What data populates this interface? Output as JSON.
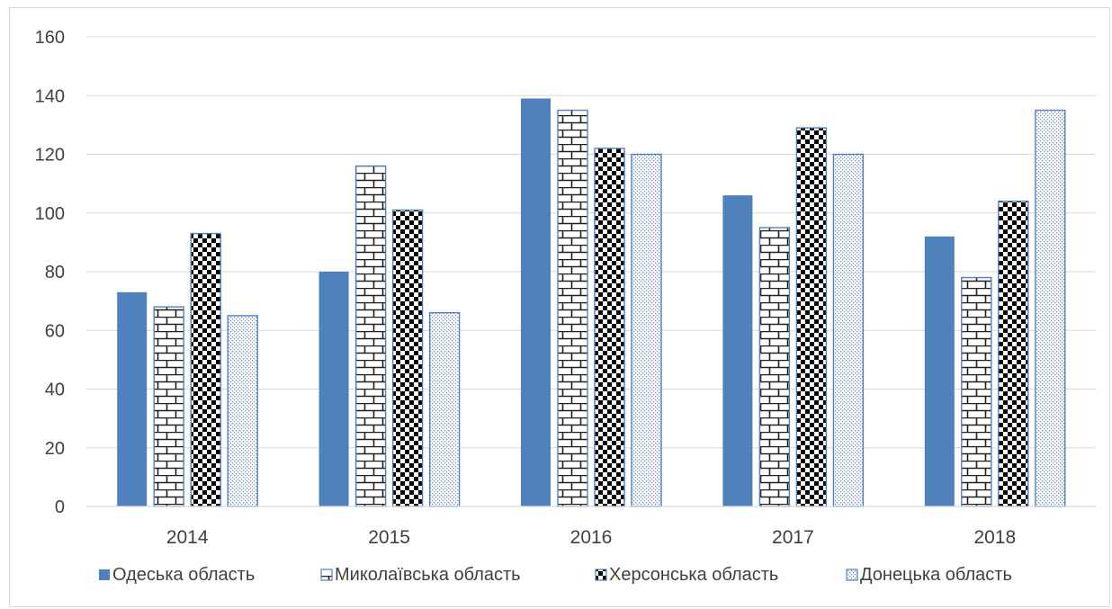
{
  "chart_data": {
    "type": "bar",
    "title": "",
    "xlabel": "",
    "ylabel": "",
    "categories": [
      "2014",
      "2015",
      "2016",
      "2017",
      "2018"
    ],
    "ylim": [
      0,
      160
    ],
    "yticks": [
      0,
      20,
      40,
      60,
      80,
      100,
      120,
      140,
      160
    ],
    "grid": true,
    "legend_position": "bottom",
    "series": [
      {
        "name": "Одеська область",
        "pattern": "solid",
        "color": "#4f81bd",
        "values": [
          73,
          80,
          139,
          106,
          92
        ]
      },
      {
        "name": "Миколаївська область",
        "pattern": "brick",
        "color": "#1f1f1f",
        "values": [
          68,
          116,
          135,
          95,
          78
        ]
      },
      {
        "name": "Херсонська область",
        "pattern": "checker",
        "color": "#000000",
        "values": [
          93,
          101,
          122,
          129,
          104
        ]
      },
      {
        "name": "Донецька область",
        "pattern": "dots",
        "color": "#6f8fc0",
        "values": [
          65,
          66,
          120,
          120,
          135
        ]
      }
    ]
  }
}
